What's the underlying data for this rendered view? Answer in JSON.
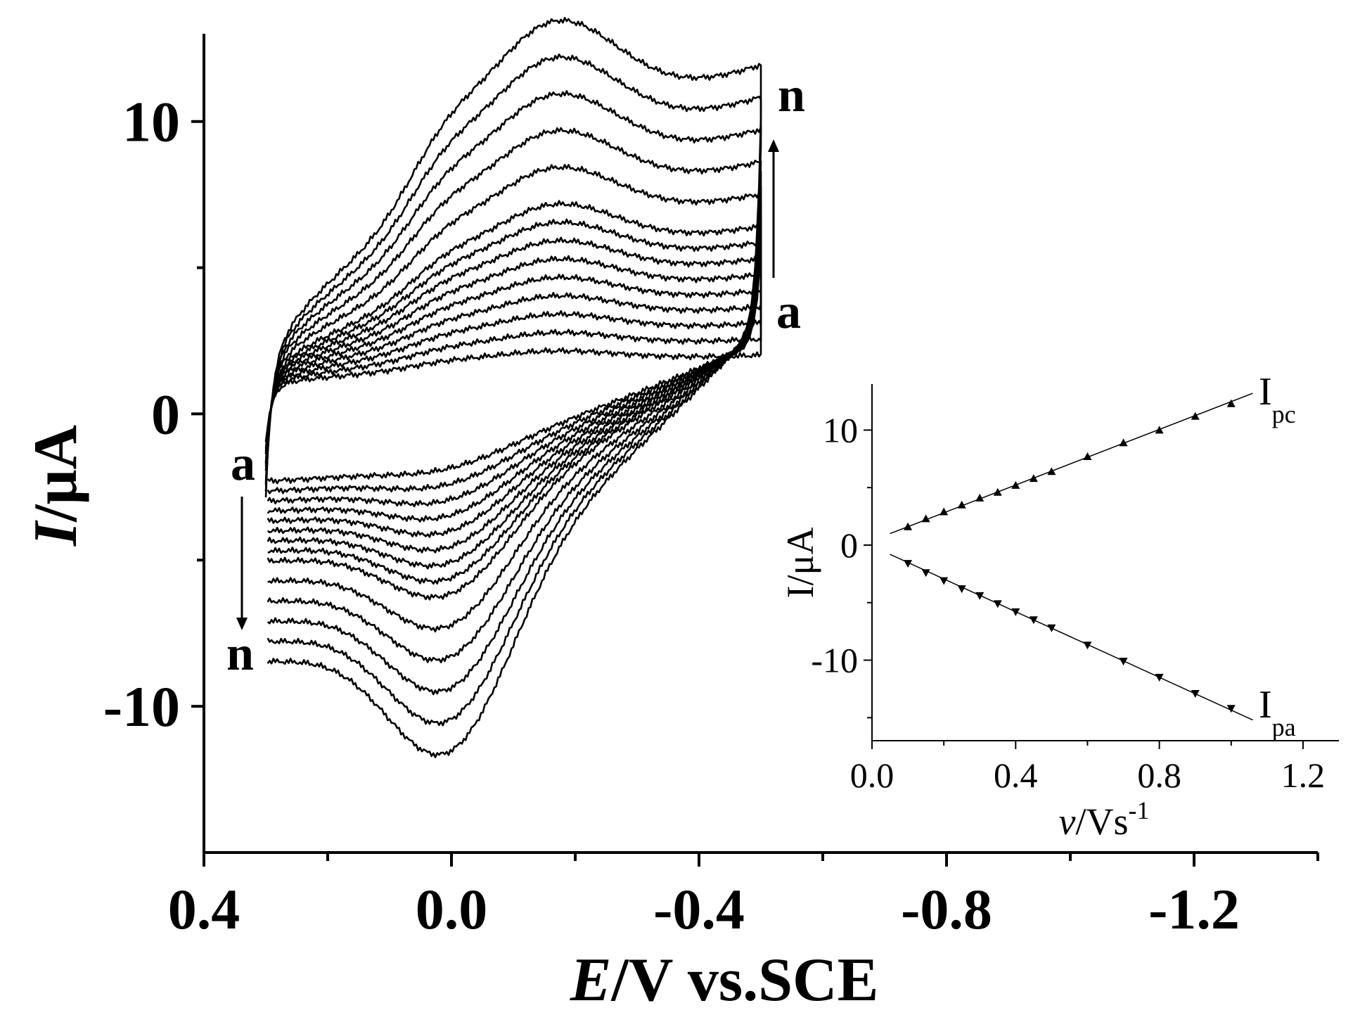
{
  "chart_data": [
    {
      "type": "line",
      "role": "main",
      "title": "",
      "xlabel": {
        "italic": "E",
        "rest": "/V vs.SCE"
      },
      "ylabel": {
        "italic": "I",
        "rest": "/μA"
      },
      "xlim": [
        0.4,
        -1.4
      ],
      "ylim": [
        -15,
        13
      ],
      "x_ticks": [
        {
          "value": 0.4,
          "label": "0.4"
        },
        {
          "value": 0.0,
          "label": "0.0"
        },
        {
          "value": -0.4,
          "label": "-0.4"
        },
        {
          "value": -0.8,
          "label": "-0.8"
        },
        {
          "value": -1.2,
          "label": "-1.2"
        }
      ],
      "x_minor_ticks": [
        0.2,
        -0.2,
        -0.6,
        -1.0,
        -1.4
      ],
      "y_ticks": [
        {
          "value": 10,
          "label": "10"
        },
        {
          "value": 0,
          "label": "0"
        },
        {
          "value": -10,
          "label": "-10"
        }
      ],
      "y_minor_ticks": [
        5,
        -5
      ],
      "potential_window": [
        0.3,
        -0.5
      ],
      "curve_count": 14,
      "scan_rates": [
        0.1,
        0.15,
        0.2,
        0.25,
        0.3,
        0.35,
        0.4,
        0.45,
        0.5,
        0.6,
        0.7,
        0.8,
        0.9,
        1.0
      ],
      "annotations": {
        "cathodic_start": "a",
        "cathodic_end": "n",
        "anodic_start": "a",
        "anodic_end": "n"
      }
    },
    {
      "type": "scatter",
      "role": "inset",
      "xlabel": {
        "italic": "v",
        "rest": "/Vs",
        "sup": "-1"
      },
      "ylabel": "I/μA",
      "xlim": [
        0.0,
        1.3
      ],
      "ylim": [
        -17,
        14
      ],
      "x_ticks": [
        {
          "value": 0.0,
          "label": "0.0"
        },
        {
          "value": 0.4,
          "label": "0.4"
        },
        {
          "value": 0.8,
          "label": "0.8"
        },
        {
          "value": 1.2,
          "label": "1.2"
        }
      ],
      "x_minor_ticks": [
        0.2,
        0.6,
        1.0
      ],
      "y_ticks": [
        {
          "value": 10,
          "label": "10"
        },
        {
          "value": 0,
          "label": "0"
        },
        {
          "value": -10,
          "label": "-10"
        }
      ],
      "y_minor_ticks": [
        5,
        -5,
        -15
      ],
      "series": [
        {
          "name": "Ipc",
          "label_main": "I",
          "label_sub": "pc",
          "marker": "triangle-up",
          "x": [
            0.1,
            0.15,
            0.2,
            0.25,
            0.3,
            0.35,
            0.4,
            0.45,
            0.5,
            0.6,
            0.7,
            0.8,
            0.9,
            1.0
          ],
          "y": [
            1.6,
            2.3,
            2.9,
            3.5,
            4.1,
            4.6,
            5.2,
            5.8,
            6.4,
            7.7,
            8.9,
            10.0,
            11.2,
            12.3
          ],
          "fit": {
            "x": [
              0.05,
              1.06
            ],
            "y": [
              1.0,
              13.2
            ]
          }
        },
        {
          "name": "Ipa",
          "label_main": "I",
          "label_sub": "pa",
          "marker": "triangle-down",
          "x": [
            0.1,
            0.15,
            0.2,
            0.25,
            0.3,
            0.35,
            0.4,
            0.45,
            0.5,
            0.6,
            0.7,
            0.8,
            0.9,
            1.0
          ],
          "y": [
            -1.6,
            -2.4,
            -3.1,
            -3.8,
            -4.4,
            -5.1,
            -5.8,
            -6.5,
            -7.2,
            -8.7,
            -10.1,
            -11.5,
            -12.9,
            -14.2
          ],
          "fit": {
            "x": [
              0.05,
              1.06
            ],
            "y": [
              -0.8,
              -15.2
            ]
          }
        }
      ]
    }
  ]
}
